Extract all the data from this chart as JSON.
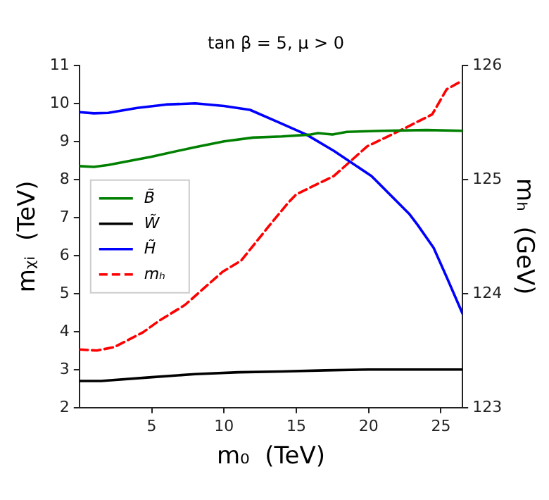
{
  "chart_data": {
    "type": "line",
    "title": "tan β = 5, μ > 0",
    "xlabel": "m₀  (TeV)",
    "ylabel": "mᵪᵢ  (TeV)",
    "y2label": "mₕ  (GeV)",
    "xlim": [
      0,
      26.5
    ],
    "xticks": [
      5,
      10,
      15,
      20,
      25
    ],
    "ylim": [
      2,
      11
    ],
    "yticks": [
      2,
      3,
      4,
      5,
      6,
      7,
      8,
      9,
      10,
      11
    ],
    "y2lim": [
      123,
      126
    ],
    "y2ticks": [
      123,
      124,
      125,
      126
    ],
    "legend": "center left",
    "grid": false,
    "marker": "none",
    "series": [
      {
        "name": "B̃",
        "color": "#008000",
        "x": [
          0,
          1,
          2,
          5,
          8,
          10,
          12,
          14,
          16,
          16.5,
          17.5,
          18.5,
          21,
          24,
          26.5
        ],
        "values": [
          8.35,
          8.33,
          8.38,
          8.6,
          8.85,
          9.0,
          9.1,
          9.13,
          9.18,
          9.22,
          9.18,
          9.25,
          9.28,
          9.3,
          9.28
        ]
      },
      {
        "name": "W̃",
        "color": "#000000",
        "x": [
          0,
          1.5,
          5,
          8,
          11,
          14,
          17,
          20,
          26.5
        ],
        "values": [
          2.7,
          2.7,
          2.8,
          2.88,
          2.93,
          2.95,
          2.98,
          3.0,
          3.0
        ]
      },
      {
        "name": "H̃",
        "color": "#0000ff",
        "x": [
          0,
          1,
          2,
          4,
          6,
          8,
          10,
          11.8,
          13.8,
          15.7,
          17.6,
          20.2,
          22.8,
          23.4,
          24.5,
          25.4,
          26.5
        ],
        "values": [
          9.77,
          9.74,
          9.75,
          9.88,
          9.97,
          10.0,
          9.93,
          9.83,
          9.5,
          9.18,
          8.75,
          8.09,
          7.1,
          6.8,
          6.2,
          5.43,
          4.47
        ]
      },
      {
        "name": "mₕ",
        "color": "#ff0000",
        "axis": "y2",
        "line_style": "dashed",
        "x": [
          0,
          1.2,
          2.4,
          4.4,
          5.5,
          7.3,
          9.9,
          11.2,
          13.1,
          14.4,
          15,
          17.6,
          19.9,
          22.2,
          24.4,
          25.4,
          26.4
        ],
        "values": [
          123.51,
          123.5,
          123.53,
          123.66,
          123.76,
          123.9,
          124.19,
          124.29,
          124.59,
          124.79,
          124.87,
          125.03,
          125.29,
          125.43,
          125.57,
          125.79,
          125.86
        ]
      }
    ]
  }
}
